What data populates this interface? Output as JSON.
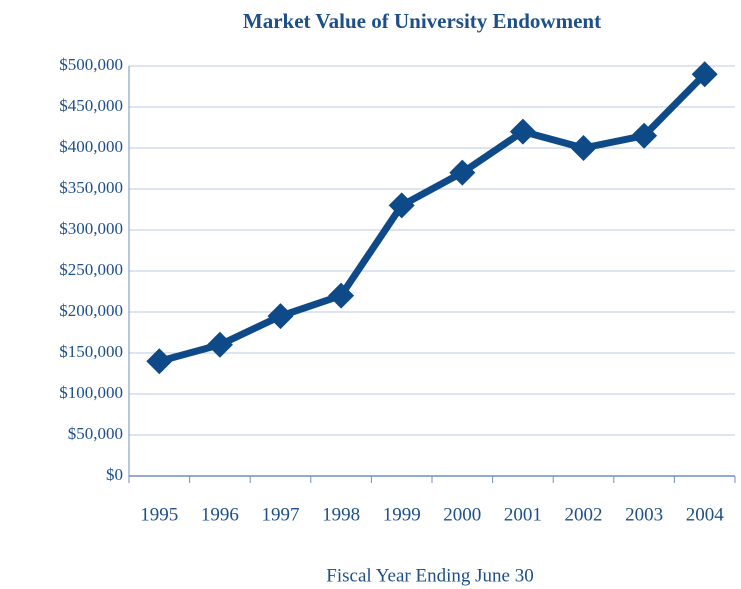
{
  "chart_data": {
    "type": "line",
    "title": "Market Value of University Endowment",
    "x_label": "Fiscal Year Ending June 30",
    "categories": [
      "1995",
      "1996",
      "1997",
      "1998",
      "1999",
      "2000",
      "2001",
      "2002",
      "2003",
      "2004"
    ],
    "series": [
      {
        "name": "Market Value",
        "color": "#0e4a87",
        "values": [
          140000,
          160000,
          195000,
          220000,
          330000,
          370000,
          420000,
          400000,
          415000,
          490000
        ]
      }
    ],
    "ylim": [
      0,
      500000
    ],
    "yticks": [
      {
        "value": 0,
        "label": "$0"
      },
      {
        "value": 50000,
        "label": "$50,000"
      },
      {
        "value": 100000,
        "label": "$100,000"
      },
      {
        "value": 150000,
        "label": "$150,000"
      },
      {
        "value": 200000,
        "label": "$200,000"
      },
      {
        "value": 250000,
        "label": "$250,000"
      },
      {
        "value": 300000,
        "label": "$300,000"
      },
      {
        "value": 350000,
        "label": "$350,000"
      },
      {
        "value": 400000,
        "label": "$400,000"
      },
      {
        "value": 450000,
        "label": "$450,000"
      },
      {
        "value": 500000,
        "label": "$500,000"
      }
    ],
    "grid": true
  }
}
